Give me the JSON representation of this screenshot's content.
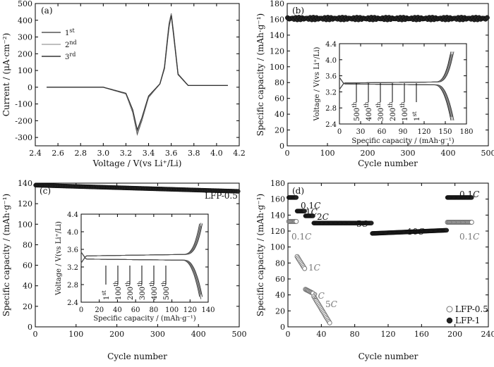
{
  "chart_data": [
    {
      "panel": "(a)",
      "type": "line",
      "xlabel": "Voltage / V(vs Li⁺/Li)",
      "ylabel": "Current / (μA·cm⁻²)",
      "xlim": [
        2.4,
        4.2
      ],
      "ylim": [
        -350,
        500
      ],
      "xticks": [
        "2.4",
        "2.6",
        "2.8",
        "3.0",
        "3.2",
        "3.4",
        "3.6",
        "3.8",
        "4.0",
        "4.2"
      ],
      "yticks": [
        "-300",
        "-200",
        "-100",
        "0",
        "100",
        "200",
        "300",
        "400",
        "500"
      ],
      "legend": [
        "1st",
        "2nd",
        "3rd"
      ],
      "series": [
        {
          "name": "1st",
          "x": [
            2.5,
            2.8,
            3.0,
            3.2,
            3.26,
            3.3,
            3.34,
            3.4,
            3.5,
            3.54,
            3.58,
            3.6,
            3.62,
            3.66,
            3.75,
            4.1
          ],
          "y": [
            0,
            0,
            0,
            -40,
            -150,
            -280,
            -200,
            -60,
            20,
            120,
            380,
            440,
            330,
            80,
            10,
            10
          ]
        },
        {
          "name": "2nd",
          "x": [
            2.5,
            2.8,
            3.0,
            3.2,
            3.26,
            3.3,
            3.34,
            3.4,
            3.5,
            3.54,
            3.58,
            3.6,
            3.62,
            3.66,
            3.75,
            4.1
          ],
          "y": [
            0,
            0,
            0,
            -38,
            -140,
            -265,
            -190,
            -55,
            20,
            115,
            370,
            435,
            320,
            78,
            10,
            10
          ]
        },
        {
          "name": "3rd",
          "x": [
            2.5,
            2.8,
            3.0,
            3.2,
            3.26,
            3.3,
            3.34,
            3.4,
            3.5,
            3.54,
            3.58,
            3.6,
            3.62,
            3.66,
            3.75,
            4.1
          ],
          "y": [
            0,
            0,
            0,
            -36,
            -135,
            -255,
            -185,
            -52,
            20,
            112,
            360,
            430,
            315,
            76,
            10,
            10
          ]
        }
      ]
    },
    {
      "panel": "(b)",
      "type": "scatter",
      "xlabel": "Cycle number",
      "ylabel": "Specific capacity / (mAh·g⁻¹)",
      "xlim": [
        0,
        500
      ],
      "ylim": [
        0,
        180
      ],
      "xticks": [
        "0",
        "100",
        "200",
        "300",
        "400",
        "500"
      ],
      "yticks": [
        "0",
        "20",
        "40",
        "60",
        "80",
        "100",
        "120",
        "140",
        "160",
        "180"
      ],
      "series": [
        {
          "name": "",
          "x_range": [
            1,
            500
          ],
          "value": 161
        }
      ],
      "inset": {
        "xlabel": "Specific capacity / (mAh·g⁻¹)",
        "ylabel": "Voltage / V(vs Li⁺/Li)",
        "xlim": [
          0,
          180
        ],
        "ylim": [
          2.4,
          4.4
        ],
        "xticks": [
          "0",
          "30",
          "60",
          "90",
          "120",
          "150",
          "180"
        ],
        "yticks": [
          "2.4",
          "2.8",
          "3.2",
          "3.6",
          "4.0",
          "4.4"
        ],
        "cycle_labels": [
          "500th",
          "400th",
          "300th",
          "200th",
          "100th",
          "1st"
        ]
      }
    },
    {
      "panel": "(c)",
      "type": "scatter",
      "xlabel": "Cycle number",
      "ylabel": "Specific capacity / (mAh·g⁻¹)",
      "legend": "LFP-0.5",
      "xlim": [
        0,
        500
      ],
      "ylim": [
        0,
        140
      ],
      "xticks": [
        "0",
        "100",
        "200",
        "300",
        "400",
        "500"
      ],
      "yticks": [
        "0",
        "20",
        "40",
        "60",
        "80",
        "100",
        "120",
        "140"
      ],
      "series": [
        {
          "name": "LFP-0.5",
          "x": [
            1,
            500
          ],
          "y": [
            138,
            132
          ]
        }
      ],
      "inset": {
        "xlabel": "Specific capacity / (mAh·g⁻¹)",
        "ylabel": "Voltage / V(vs Li⁺/Li)",
        "xlim": [
          0,
          140
        ],
        "ylim": [
          2.4,
          4.4
        ],
        "xticks": [
          "0",
          "20",
          "40",
          "60",
          "80",
          "100",
          "120",
          "140"
        ],
        "yticks": [
          "2.4",
          "2.8",
          "3.2",
          "3.6",
          "4.0",
          "4.4"
        ],
        "cycle_labels": [
          "1st",
          "100th",
          "200th",
          "300th",
          "400th",
          "500th"
        ]
      }
    },
    {
      "panel": "(d)",
      "type": "scatter",
      "xlabel": "Cycle number",
      "ylabel": "Specific capacity / (mAh·g⁻¹)",
      "xlim": [
        0,
        240
      ],
      "ylim": [
        0,
        180
      ],
      "xticks": [
        "0",
        "40",
        "80",
        "120",
        "160",
        "200",
        "240"
      ],
      "yticks": [
        "0",
        "20",
        "40",
        "60",
        "80",
        "100",
        "120",
        "140",
        "160",
        "180"
      ],
      "legend": [
        "LFP-0.5",
        "LFP-1"
      ],
      "rate_labels_lfp1": [
        "0.1C",
        "1C",
        "2C",
        "5C",
        "10C",
        "0.1C"
      ],
      "rate_labels_lfp05": [
        "0.1C",
        "1C",
        "2C",
        "5C",
        "0.1C"
      ],
      "series": [
        {
          "name": "LFP-1",
          "segments": [
            {
              "x": [
                1,
                10
              ],
              "y": 162
            },
            {
              "x": [
                11,
                20
              ],
              "y": 145
            },
            {
              "x": [
                21,
                30
              ],
              "y": 139
            },
            {
              "x": [
                31,
                100
              ],
              "y": 130
            },
            {
              "x": [
                101,
                190
              ],
              "y": [
                117,
                121
              ]
            },
            {
              "x": [
                191,
                220
              ],
              "y": 162
            }
          ]
        },
        {
          "name": "LFP-0.5",
          "segments": [
            {
              "x": [
                1,
                10
              ],
              "y": 132
            },
            {
              "x": [
                11,
                20
              ],
              "y": [
                88,
                73
              ]
            },
            {
              "x": [
                21,
                30
              ],
              "y": [
                47,
                42
              ]
            },
            {
              "x": [
                31,
                50
              ],
              "y": [
                38,
                5
              ]
            },
            {
              "x": [
                191,
                220
              ],
              "y": 131
            }
          ]
        }
      ]
    }
  ]
}
